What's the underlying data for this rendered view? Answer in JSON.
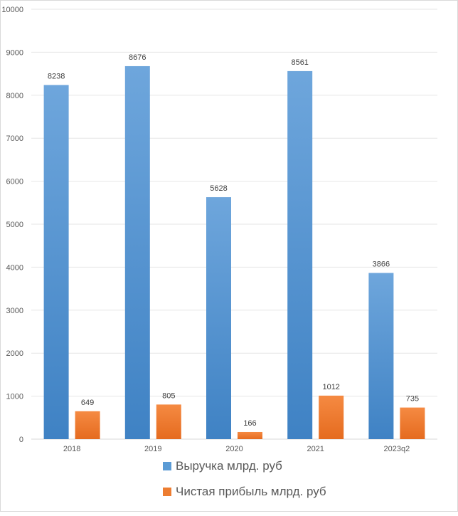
{
  "chart_data": {
    "type": "bar",
    "categories": [
      "2018",
      "2019",
      "2020",
      "2021",
      "2023q2"
    ],
    "series": [
      {
        "name": "Выручка млрд. руб",
        "values": [
          8238,
          8676,
          5628,
          8561,
          3866
        ],
        "color": "#5b9bd5"
      },
      {
        "name": "Чистая прибыль млрд. руб",
        "values": [
          649,
          805,
          166,
          1012,
          735
        ],
        "color": "#ed7d31"
      }
    ],
    "ylim": [
      0,
      10000
    ],
    "yticks": [
      0,
      1000,
      2000,
      3000,
      4000,
      5000,
      6000,
      7000,
      8000,
      9000,
      10000
    ],
    "grid": true,
    "data_labels": true,
    "legend_position": "bottom"
  }
}
